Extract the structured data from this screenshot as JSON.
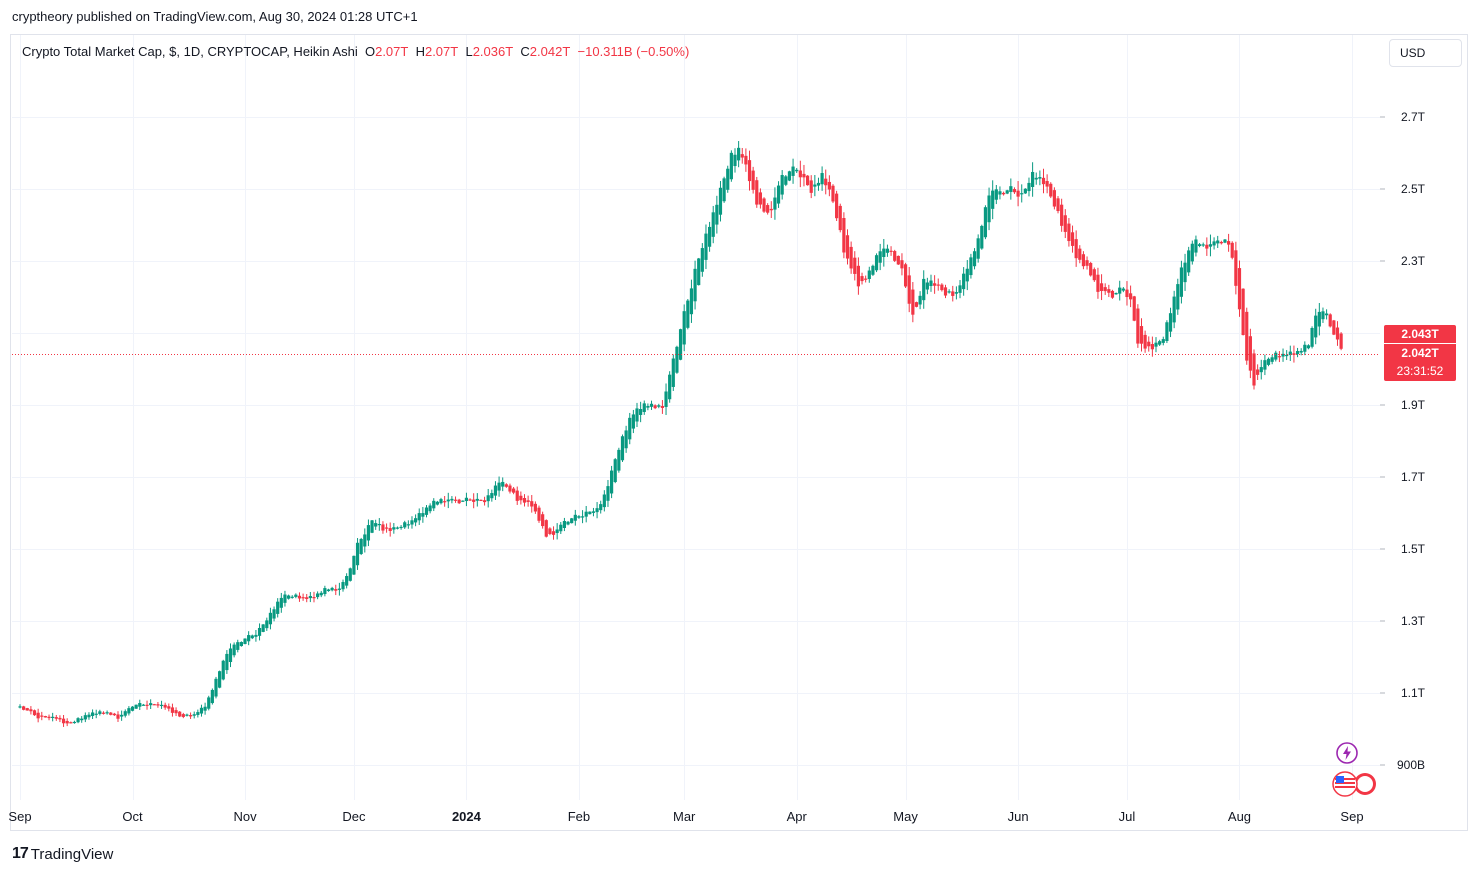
{
  "header": {
    "publisher_line": "cryptheory published on TradingView.com, Aug 30, 2024 01:28 UTC+1"
  },
  "legend": {
    "name": "Crypto Total Market Cap, $, 1D, CRYPTOCAP, Heikin Ashi",
    "o_label": "O",
    "o_value": "2.07T",
    "h_label": "H",
    "h_value": "2.07T",
    "l_label": "L",
    "l_value": "2.036T",
    "c_label": "C",
    "c_value": "2.042T",
    "change": "−10.311B (−0.50%)"
  },
  "currency_button": "USD",
  "price_labels": {
    "upper": "2.043T",
    "last": "2.042T",
    "countdown": "23:31:52"
  },
  "footer": {
    "logo": "17",
    "brand": "TradingView"
  },
  "icons": [
    "lightning-icon",
    "us-flag-icon"
  ],
  "colors": {
    "up": "#089981",
    "down": "#f23645",
    "grid": "#f0f3fa"
  },
  "chart_data": {
    "type": "ohlc",
    "style": "Heikin Ashi",
    "unit": "T",
    "y_ticks": [
      {
        "value": 2.7,
        "label": "2.7T"
      },
      {
        "value": 2.5,
        "label": "2.5T"
      },
      {
        "value": 2.3,
        "label": "2.3T"
      },
      {
        "value": 1.9,
        "label": "1.9T"
      },
      {
        "value": 1.7,
        "label": "1.7T"
      },
      {
        "value": 1.5,
        "label": "1.5T"
      },
      {
        "value": 1.3,
        "label": "1.3T"
      },
      {
        "value": 1.1,
        "label": "1.1T"
      },
      {
        "value": 0.9,
        "label": "900B"
      }
    ],
    "ylim": [
      0.8,
      2.9
    ],
    "grid": true,
    "x_ticks": [
      {
        "day": 0,
        "label": "Sep"
      },
      {
        "day": 31,
        "label": "Oct"
      },
      {
        "day": 62,
        "label": "Nov"
      },
      {
        "day": 92,
        "label": "Dec"
      },
      {
        "day": 123,
        "label": "2024",
        "bold": true
      },
      {
        "day": 154,
        "label": "Feb"
      },
      {
        "day": 183,
        "label": "Mar"
      },
      {
        "day": 214,
        "label": "Apr"
      },
      {
        "day": 244,
        "label": "May"
      },
      {
        "day": 275,
        "label": "Jun"
      },
      {
        "day": 305,
        "label": "Jul"
      },
      {
        "day": 336,
        "label": "Aug"
      },
      {
        "day": 367,
        "label": "Sep"
      }
    ],
    "last_close": 2.042,
    "anchors": [
      [
        0,
        1.06
      ],
      [
        5,
        1.03
      ],
      [
        10,
        1.03
      ],
      [
        13,
        1.01
      ],
      [
        18,
        1.04
      ],
      [
        22,
        1.05
      ],
      [
        27,
        1.03
      ],
      [
        31,
        1.07
      ],
      [
        36,
        1.07
      ],
      [
        40,
        1.06
      ],
      [
        44,
        1.03
      ],
      [
        48,
        1.04
      ],
      [
        51,
        1.07
      ],
      [
        54,
        1.15
      ],
      [
        57,
        1.23
      ],
      [
        61,
        1.25
      ],
      [
        65,
        1.27
      ],
      [
        68,
        1.31
      ],
      [
        72,
        1.38
      ],
      [
        75,
        1.37
      ],
      [
        79,
        1.36
      ],
      [
        84,
        1.39
      ],
      [
        88,
        1.39
      ],
      [
        90,
        1.43
      ],
      [
        93,
        1.53
      ],
      [
        97,
        1.59
      ],
      [
        100,
        1.55
      ],
      [
        104,
        1.56
      ],
      [
        108,
        1.58
      ],
      [
        113,
        1.63
      ],
      [
        117,
        1.64
      ],
      [
        121,
        1.63
      ],
      [
        124,
        1.64
      ],
      [
        128,
        1.63
      ],
      [
        132,
        1.7
      ],
      [
        134,
        1.67
      ],
      [
        137,
        1.63
      ],
      [
        141,
        1.62
      ],
      [
        145,
        1.52
      ],
      [
        150,
        1.58
      ],
      [
        155,
        1.6
      ],
      [
        159,
        1.61
      ],
      [
        161,
        1.66
      ],
      [
        164,
        1.77
      ],
      [
        168,
        1.88
      ],
      [
        172,
        1.91
      ],
      [
        175,
        1.89
      ],
      [
        177,
        1.9
      ],
      [
        180,
        2.05
      ],
      [
        183,
        2.18
      ],
      [
        186,
        2.3
      ],
      [
        190,
        2.42
      ],
      [
        193,
        2.52
      ],
      [
        196,
        2.61
      ],
      [
        198,
        2.62
      ],
      [
        200,
        2.55
      ],
      [
        203,
        2.44
      ],
      [
        206,
        2.42
      ],
      [
        210,
        2.55
      ],
      [
        214,
        2.56
      ],
      [
        218,
        2.48
      ],
      [
        221,
        2.55
      ],
      [
        224,
        2.45
      ],
      [
        227,
        2.3
      ],
      [
        231,
        2.22
      ],
      [
        234,
        2.27
      ],
      [
        237,
        2.35
      ],
      [
        240,
        2.32
      ],
      [
        243,
        2.26
      ],
      [
        246,
        2.12
      ],
      [
        249,
        2.26
      ],
      [
        252,
        2.24
      ],
      [
        255,
        2.2
      ],
      [
        258,
        2.21
      ],
      [
        261,
        2.3
      ],
      [
        264,
        2.37
      ],
      [
        267,
        2.52
      ],
      [
        270,
        2.49
      ],
      [
        273,
        2.5
      ],
      [
        276,
        2.48
      ],
      [
        279,
        2.55
      ],
      [
        282,
        2.52
      ],
      [
        285,
        2.44
      ],
      [
        288,
        2.36
      ],
      [
        291,
        2.3
      ],
      [
        294,
        2.27
      ],
      [
        297,
        2.21
      ],
      [
        301,
        2.2
      ],
      [
        304,
        2.23
      ],
      [
        306,
        2.18
      ],
      [
        308,
        2.04
      ],
      [
        312,
        2.06
      ],
      [
        315,
        2.09
      ],
      [
        317,
        2.18
      ],
      [
        320,
        2.3
      ],
      [
        323,
        2.37
      ],
      [
        326,
        2.34
      ],
      [
        329,
        2.35
      ],
      [
        332,
        2.36
      ],
      [
        334,
        2.3
      ],
      [
        336,
        2.12
      ],
      [
        338,
        1.98
      ],
      [
        340,
        1.93
      ],
      [
        342,
        2.02
      ],
      [
        345,
        2.04
      ],
      [
        349,
        2.04
      ],
      [
        352,
        2.05
      ],
      [
        355,
        2.07
      ],
      [
        357,
        2.18
      ],
      [
        360,
        2.15
      ],
      [
        362,
        2.08
      ],
      [
        364,
        2.04
      ]
    ],
    "noise": [
      0.45,
      -0.62,
      0.18,
      0.88,
      -0.35,
      -0.9,
      0.6,
      0.12,
      -0.15,
      0.73,
      -0.48,
      0.31,
      -0.82,
      0.55,
      0.05,
      -0.27,
      0.95,
      -0.6,
      0.38,
      -0.05,
      0.67,
      -0.71,
      0.22,
      -0.4,
      0.84,
      -0.12,
      0.49,
      -0.88,
      0.16,
      0.58
    ]
  }
}
